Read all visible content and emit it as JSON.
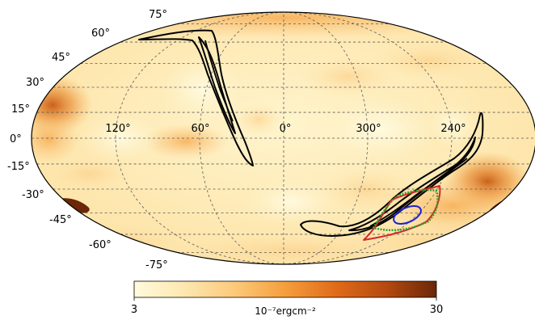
{
  "chart_data": {
    "type": "heatmap",
    "projection": "mollweide",
    "title": "",
    "lat_tick_labels": [
      "75°",
      "60°",
      "45°",
      "30°",
      "15°",
      "0°",
      "-15°",
      "-30°",
      "-45°",
      "-60°",
      "-75°"
    ],
    "lat_ticks": [
      75,
      60,
      45,
      30,
      15,
      0,
      -15,
      -30,
      -45,
      -60,
      -75
    ],
    "lon_tick_labels": [
      "120°",
      "60°",
      "0°",
      "300°",
      "240°"
    ],
    "lon_ticks": [
      120,
      60,
      0,
      300,
      240
    ],
    "grid": true,
    "colorbar": {
      "scale": "log",
      "min": 3,
      "max": 30,
      "min_label": "3",
      "max_label": "30",
      "unit_label": "10⁻⁷ergcm⁻²",
      "colors": [
        "#fffbdc",
        "#fde7b0",
        "#fcc97a",
        "#f59e3c",
        "#e06b19",
        "#b54a10",
        "#6b2707"
      ]
    },
    "contours": [
      {
        "color": "#000000",
        "region": "northern arc",
        "lon_range": [
          140,
          345
        ],
        "lat_range": [
          -5,
          66
        ]
      },
      {
        "color": "#000000",
        "region": "southern arc",
        "lon_range": [
          200,
          290
        ],
        "lat_range": [
          -49,
          7
        ]
      },
      {
        "color": "#d62728",
        "region": "southern cluster",
        "lon_range": [
          225,
          265
        ],
        "lat_range": [
          -52,
          -31
        ]
      },
      {
        "color": "#2ca02c",
        "region": "southern cluster",
        "lon_range": [
          225,
          268
        ],
        "lat_range": [
          -50,
          -33
        ]
      },
      {
        "color": "#1f1fd6",
        "region": "southern cluster",
        "lon_range": [
          244,
          260
        ],
        "lat_range": [
          -45,
          -37
        ]
      }
    ]
  }
}
